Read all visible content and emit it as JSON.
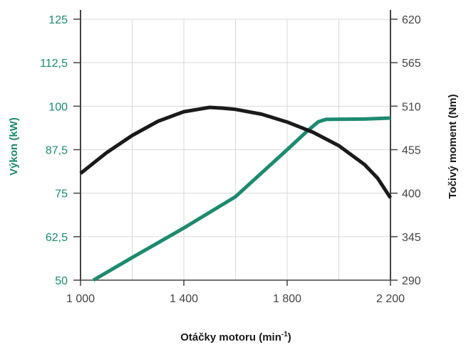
{
  "chart_data": {
    "type": "line",
    "x_axis": {
      "label": "Otáčky motoru (min",
      "label_sup": "-1",
      "label_end": ")",
      "range": [
        1000,
        2200
      ],
      "ticks": [
        1000,
        1400,
        1800,
        2200
      ],
      "tick_labels": [
        "1 000",
        "1 400",
        "1 800",
        "2 200"
      ]
    },
    "y_left": {
      "label": "Výkon (kW)",
      "range": [
        50,
        125
      ],
      "ticks": [
        50,
        62.5,
        75,
        87.5,
        100,
        112.5,
        125
      ],
      "tick_labels": [
        "50",
        "62,5",
        "75",
        "87,5",
        "100",
        "112,5",
        "125"
      ],
      "color": "#1d8a6e"
    },
    "y_right": {
      "label": "Točivý moment (Nm)",
      "range": [
        290,
        620
      ],
      "ticks": [
        290,
        345,
        400,
        455,
        510,
        565,
        620
      ],
      "tick_labels": [
        "290",
        "345",
        "400",
        "455",
        "510",
        "565",
        "620"
      ],
      "color": "#1a1a1a"
    },
    "grid": true,
    "series": [
      {
        "axis": "left",
        "color": "#1d8a6e",
        "points": [
          [
            1050,
            50
          ],
          [
            1200,
            56.5
          ],
          [
            1400,
            65
          ],
          [
            1600,
            74
          ],
          [
            1800,
            87.5
          ],
          [
            1880,
            93
          ],
          [
            1920,
            95.5
          ],
          [
            1950,
            96.2
          ],
          [
            2100,
            96.3
          ],
          [
            2200,
            96.6
          ]
        ]
      },
      {
        "axis": "right",
        "color": "#1a1a1a",
        "points": [
          [
            1000,
            425
          ],
          [
            1100,
            451
          ],
          [
            1200,
            473
          ],
          [
            1300,
            491
          ],
          [
            1400,
            503
          ],
          [
            1500,
            508.5
          ],
          [
            1550,
            507.5
          ],
          [
            1600,
            506
          ],
          [
            1700,
            500
          ],
          [
            1800,
            490
          ],
          [
            1900,
            477
          ],
          [
            2000,
            460
          ],
          [
            2100,
            436
          ],
          [
            2150,
            419
          ],
          [
            2200,
            394
          ]
        ]
      }
    ]
  }
}
